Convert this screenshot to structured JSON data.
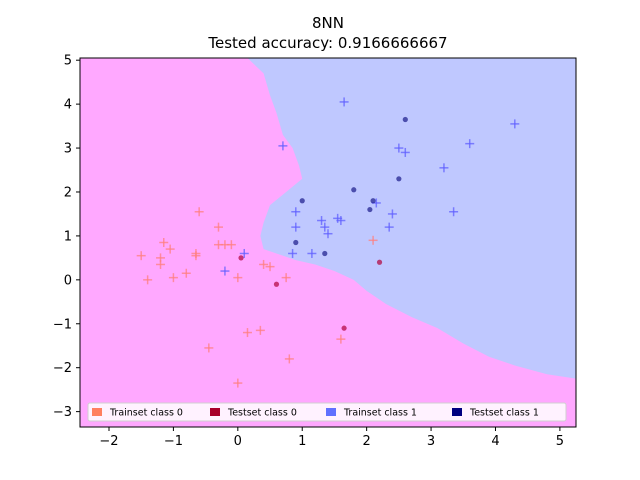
{
  "chart_data": {
    "type": "scatter",
    "title": "8NN",
    "subtitle": "Tested accuracy: 0.9166666667",
    "xlabel": "",
    "ylabel": "",
    "xlim": [
      -2.45,
      5.25
    ],
    "ylim": [
      -3.35,
      5.05
    ],
    "x_ticks": [
      -2,
      -1,
      0,
      1,
      2,
      3,
      4,
      5
    ],
    "y_ticks": [
      -3,
      -2,
      -1,
      0,
      1,
      2,
      3,
      4,
      5
    ],
    "grid": false,
    "legend_position": "lower-center",
    "decision_regions": {
      "class0_color": "#ffa8ff",
      "class1_color": "#bfc8ff",
      "boundary": [
        [
          -2.45,
          5.05
        ],
        [
          0.15,
          5.05
        ],
        [
          0.4,
          4.7
        ],
        [
          0.5,
          4.2
        ],
        [
          0.6,
          3.8
        ],
        [
          0.7,
          3.3
        ],
        [
          0.85,
          3.0
        ],
        [
          0.95,
          2.6
        ],
        [
          1.0,
          2.3
        ],
        [
          0.75,
          2.0
        ],
        [
          0.5,
          1.7
        ],
        [
          0.4,
          1.3
        ],
        [
          0.35,
          1.0
        ],
        [
          0.4,
          0.7
        ],
        [
          0.6,
          0.6
        ],
        [
          0.9,
          0.45
        ],
        [
          1.2,
          0.35
        ],
        [
          1.5,
          0.2
        ],
        [
          1.8,
          0.0
        ],
        [
          2.0,
          -0.25
        ],
        [
          2.3,
          -0.55
        ],
        [
          2.7,
          -0.85
        ],
        [
          3.1,
          -1.1
        ],
        [
          3.5,
          -1.45
        ],
        [
          3.9,
          -1.75
        ],
        [
          4.3,
          -1.95
        ],
        [
          4.8,
          -2.15
        ],
        [
          5.25,
          -2.25
        ]
      ]
    },
    "series": [
      {
        "name": "Trainset class 0",
        "marker": "plus",
        "color": "#ff7f7f",
        "points": [
          [
            -1.5,
            0.55
          ],
          [
            -1.4,
            0.0
          ],
          [
            -1.2,
            0.5
          ],
          [
            -1.2,
            0.35
          ],
          [
            -1.15,
            0.85
          ],
          [
            -1.05,
            0.7
          ],
          [
            -1.0,
            0.05
          ],
          [
            -0.8,
            0.15
          ],
          [
            -0.65,
            0.55
          ],
          [
            -0.65,
            0.6
          ],
          [
            -0.6,
            1.55
          ],
          [
            -0.45,
            -1.55
          ],
          [
            -0.3,
            1.2
          ],
          [
            -0.3,
            0.8
          ],
          [
            -0.2,
            0.8
          ],
          [
            -0.1,
            0.8
          ],
          [
            0.0,
            0.05
          ],
          [
            0.0,
            -2.35
          ],
          [
            0.15,
            -1.2
          ],
          [
            0.35,
            -1.15
          ],
          [
            0.4,
            0.35
          ],
          [
            0.5,
            0.3
          ],
          [
            0.75,
            0.05
          ],
          [
            0.8,
            -1.8
          ],
          [
            1.6,
            -1.35
          ],
          [
            2.1,
            0.9
          ]
        ]
      },
      {
        "name": "Testset class 0",
        "marker": "dot",
        "color": "#b0003a",
        "points": [
          [
            0.05,
            0.5
          ],
          [
            0.6,
            -0.1
          ],
          [
            1.65,
            -1.1
          ],
          [
            2.2,
            0.4
          ]
        ]
      },
      {
        "name": "Trainset class 1",
        "marker": "plus",
        "color": "#6060ff",
        "points": [
          [
            -0.2,
            0.2
          ],
          [
            0.1,
            0.6
          ],
          [
            0.7,
            3.05
          ],
          [
            0.85,
            0.6
          ],
          [
            0.9,
            1.55
          ],
          [
            0.9,
            1.2
          ],
          [
            1.15,
            0.6
          ],
          [
            1.3,
            1.35
          ],
          [
            1.35,
            1.2
          ],
          [
            1.4,
            1.05
          ],
          [
            1.55,
            1.4
          ],
          [
            1.6,
            1.35
          ],
          [
            1.65,
            4.05
          ],
          [
            2.15,
            1.75
          ],
          [
            2.35,
            1.2
          ],
          [
            2.4,
            1.5
          ],
          [
            2.5,
            3.0
          ],
          [
            2.6,
            2.9
          ],
          [
            3.2,
            2.55
          ],
          [
            3.35,
            1.55
          ],
          [
            3.6,
            3.1
          ],
          [
            4.3,
            3.55
          ]
        ]
      },
      {
        "name": "Testset class 1",
        "marker": "dot",
        "color": "#1a1a8a",
        "points": [
          [
            0.9,
            0.85
          ],
          [
            1.0,
            1.8
          ],
          [
            1.35,
            0.6
          ],
          [
            1.8,
            2.05
          ],
          [
            2.05,
            1.6
          ],
          [
            2.1,
            1.8
          ],
          [
            2.5,
            2.3
          ],
          [
            2.6,
            3.65
          ]
        ]
      }
    ],
    "legend": [
      {
        "label": "Trainset class 0",
        "color": "#ff7f60"
      },
      {
        "label": "Testset class 0",
        "color": "#a8002a"
      },
      {
        "label": "Trainset class 1",
        "color": "#6070ff"
      },
      {
        "label": "Testset class 1",
        "color": "#000080"
      }
    ]
  }
}
